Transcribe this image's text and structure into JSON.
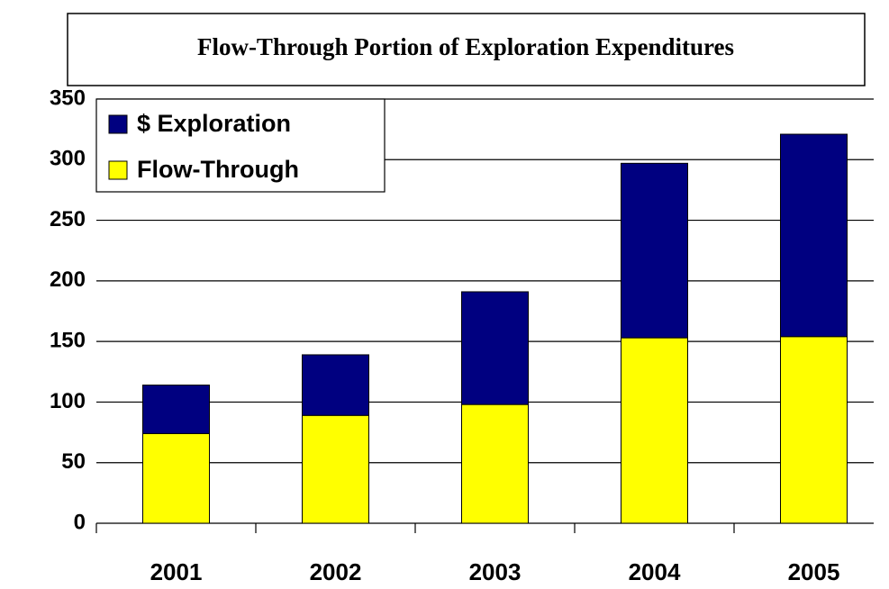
{
  "chart_data": {
    "type": "stacked_bar",
    "title": "Flow-Through Portion of Exploration Expenditures",
    "categories": [
      "2001",
      "2002",
      "2003",
      "2004",
      "2005"
    ],
    "series": [
      {
        "name": "$ Exploration",
        "color": "#000080",
        "values": [
          40,
          50,
          93,
          144,
          167
        ]
      },
      {
        "name": "Flow-Through",
        "color": "#ffff00",
        "values": [
          74,
          89,
          98,
          153,
          154
        ]
      }
    ],
    "ylim": [
      0,
      350
    ],
    "yticks": [
      0,
      50,
      100,
      150,
      200,
      250,
      300,
      350
    ],
    "grid": true,
    "legend": "top-left"
  }
}
